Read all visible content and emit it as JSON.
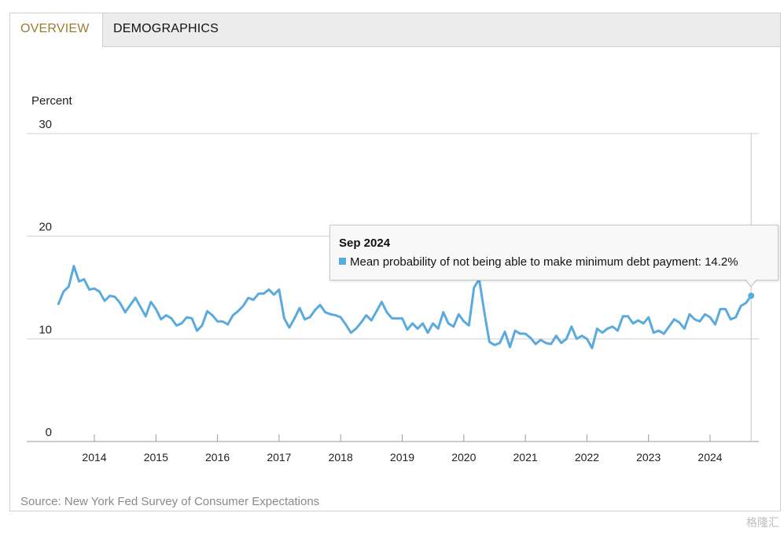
{
  "tabs": [
    {
      "label": "OVERVIEW",
      "active": true
    },
    {
      "label": "DEMOGRAPHICS",
      "active": false
    }
  ],
  "source": "Source: New York Fed Survey of Consumer Expectations",
  "watermark": "格隆汇",
  "tooltip": {
    "date": "Sep 2024",
    "series_label": "Mean probability of not being able to make minimum debt payment: 14.2%"
  },
  "colors": {
    "line": "#5aaade",
    "active_tab": "#9b7b31",
    "grid": "#cfcfcf"
  },
  "chart_data": {
    "type": "line",
    "ylabel": "Percent",
    "ylim": [
      0,
      30
    ],
    "yticks": [
      0,
      10,
      20,
      30
    ],
    "xticks": [
      "2014",
      "2015",
      "2016",
      "2017",
      "2018",
      "2019",
      "2020",
      "2021",
      "2022",
      "2023",
      "2024"
    ],
    "grid": true,
    "series": [
      {
        "name": "Mean probability of not being able to make minimum debt payment",
        "start": "2013-06",
        "values": [
          13.4,
          14.6,
          15.1,
          17.1,
          15.6,
          15.8,
          14.8,
          14.9,
          14.6,
          13.7,
          14.2,
          14.1,
          13.5,
          12.6,
          13.3,
          14.0,
          13.1,
          12.2,
          13.6,
          12.9,
          11.9,
          12.3,
          12.0,
          11.3,
          11.5,
          12.1,
          12.0,
          10.8,
          11.3,
          12.7,
          12.3,
          11.7,
          11.7,
          11.4,
          12.3,
          12.7,
          13.2,
          14.0,
          13.8,
          14.4,
          14.4,
          14.8,
          14.3,
          14.8,
          12.0,
          11.1,
          12.0,
          13.0,
          11.9,
          12.1,
          12.8,
          13.3,
          12.6,
          12.4,
          12.3,
          12.1,
          11.4,
          10.6,
          11.0,
          11.6,
          12.3,
          11.8,
          12.7,
          13.6,
          12.6,
          12.0,
          12.0,
          12.0,
          10.9,
          11.5,
          11.0,
          11.5,
          10.6,
          11.5,
          11.0,
          12.6,
          11.5,
          11.2,
          12.4,
          11.7,
          11.3,
          15.0,
          15.8,
          12.6,
          9.7,
          9.4,
          9.6,
          10.7,
          9.2,
          10.8,
          10.5,
          10.5,
          10.1,
          9.5,
          9.9,
          9.6,
          9.5,
          10.3,
          9.6,
          10.0,
          11.2,
          10.0,
          10.3,
          10.0,
          9.1,
          11.0,
          10.6,
          11.0,
          11.2,
          10.8,
          12.2,
          12.2,
          11.5,
          11.8,
          11.5,
          12.1,
          10.6,
          10.8,
          10.5,
          11.2,
          11.9,
          11.6,
          11.0,
          12.4,
          11.9,
          11.7,
          12.4,
          12.1,
          11.4,
          12.9,
          12.9,
          11.9,
          12.1,
          13.2,
          13.5,
          14.2
        ]
      }
    ],
    "highlight": {
      "x": "Sep 2024",
      "y": 14.2
    }
  }
}
